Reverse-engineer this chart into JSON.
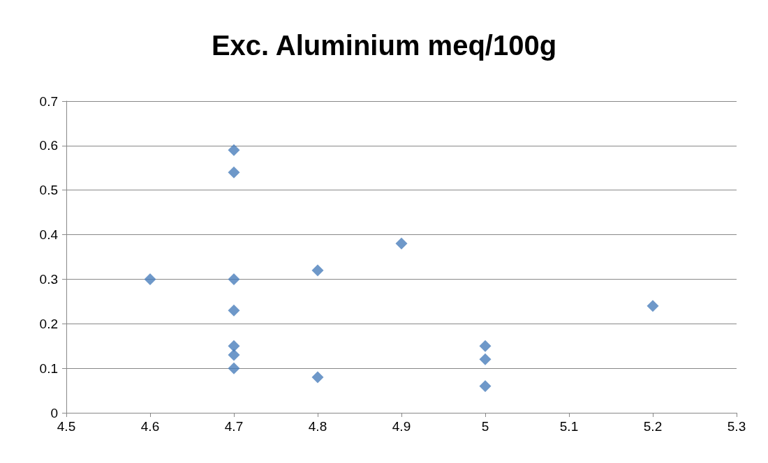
{
  "chart_data": {
    "type": "scatter",
    "title": "Exc. Aluminium meq/100g",
    "x": [
      4.6,
      4.7,
      4.7,
      4.7,
      4.7,
      4.7,
      4.7,
      4.7,
      4.8,
      4.8,
      4.9,
      5,
      5,
      5,
      5.2
    ],
    "values": [
      0.3,
      0.59,
      0.54,
      0.3,
      0.23,
      0.15,
      0.13,
      0.1,
      0.32,
      0.08,
      0.38,
      0.15,
      0.12,
      0.06,
      0.24
    ],
    "color": "#4a7ebb",
    "marker": "diamond",
    "xlim": [
      4.5,
      5.3
    ],
    "xticks": [
      4.5,
      4.6,
      4.7,
      4.8,
      4.9,
      5,
      5.1,
      5.2,
      5.3
    ],
    "ylim": [
      0,
      0.7
    ],
    "yticks": [
      0,
      0.1,
      0.2,
      0.3,
      0.4,
      0.5,
      0.6,
      0.7
    ],
    "grid": "y"
  }
}
